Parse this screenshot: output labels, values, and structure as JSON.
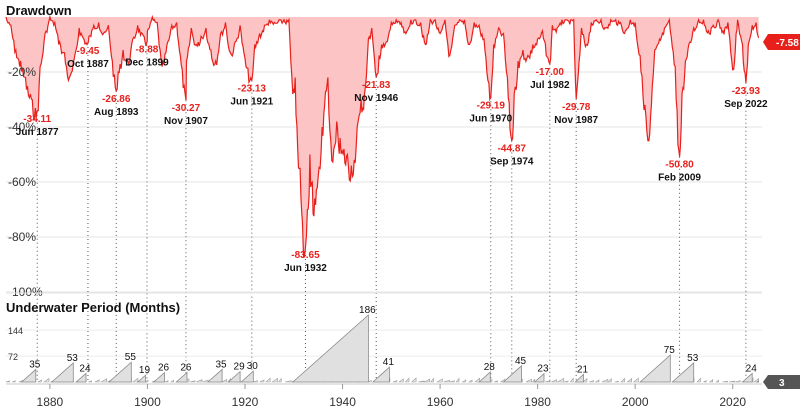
{
  "chart_data": [
    {
      "type": "area",
      "title": "Drawdown",
      "ylim": [
        -100,
        0
      ],
      "y_ticks": [
        "-20%",
        "-40%",
        "-60%",
        "-80%",
        "-100%"
      ],
      "x_ticks": [
        "1880",
        "1900",
        "1920",
        "1940",
        "1960",
        "1980",
        "2000",
        "2020"
      ],
      "xlim": [
        1871,
        2026
      ],
      "grid": true,
      "color": "#e8201c",
      "fill": "#fcc4c4",
      "current": {
        "label": "-7.58",
        "value": -7.58
      },
      "troughs": [
        {
          "date": "Jun 1877",
          "x": 1877.4,
          "value": -34.11,
          "label": "-34.11"
        },
        {
          "date": "Oct 1887",
          "x": 1887.8,
          "value": -9.45,
          "label": "-9.45"
        },
        {
          "date": "Aug 1893",
          "x": 1893.6,
          "value": -26.86,
          "label": "-26.86"
        },
        {
          "date": "Dec 1899",
          "x": 1899.9,
          "value": -8.88,
          "label": "-8.88"
        },
        {
          "date": "Nov 1907",
          "x": 1907.9,
          "value": -30.27,
          "label": "-30.27"
        },
        {
          "date": "Jun 1921",
          "x": 1921.4,
          "value": -23.13,
          "label": "-23.13"
        },
        {
          "date": "Jun 1932",
          "x": 1932.4,
          "value": -83.65,
          "label": "-83.65"
        },
        {
          "date": "Nov 1946",
          "x": 1946.9,
          "value": -21.83,
          "label": "-21.83"
        },
        {
          "date": "Jun 1970",
          "x": 1970.4,
          "value": -29.19,
          "label": "-29.19"
        },
        {
          "date": "Sep 1974",
          "x": 1974.7,
          "value": -44.87,
          "label": "-44.87"
        },
        {
          "date": "Jul 1982",
          "x": 1982.5,
          "value": -17.0,
          "label": "-17.00"
        },
        {
          "date": "Nov 1987",
          "x": 1987.9,
          "value": -29.78,
          "label": "-29.78"
        },
        {
          "date": "Feb 2009",
          "x": 2009.1,
          "value": -50.8,
          "label": "-50.80"
        },
        {
          "date": "Sep 2022",
          "x": 2022.7,
          "value": -23.93,
          "label": "-23.93"
        }
      ],
      "series": [
        {
          "values": [
            [
              1871,
              0
            ],
            [
              1872,
              -3
            ],
            [
              1873,
              -12
            ],
            [
              1874,
              -16
            ],
            [
              1875,
              -22
            ],
            [
              1876,
              -28
            ],
            [
              1877.4,
              -34.11
            ],
            [
              1878,
              -18
            ],
            [
              1879,
              -6
            ],
            [
              1880,
              0
            ],
            [
              1881,
              -2
            ],
            [
              1882,
              -9
            ],
            [
              1883,
              -13
            ],
            [
              1884,
              -22
            ],
            [
              1885,
              -15
            ],
            [
              1886,
              -4
            ],
            [
              1887.8,
              -9.45
            ],
            [
              1888,
              -7
            ],
            [
              1889,
              -3
            ],
            [
              1890,
              -2
            ],
            [
              1891,
              -6
            ],
            [
              1892,
              -3
            ],
            [
              1893.6,
              -26.86
            ],
            [
              1894,
              -20
            ],
            [
              1895,
              -12
            ],
            [
              1896,
              -16
            ],
            [
              1897,
              -8
            ],
            [
              1898,
              -3
            ],
            [
              1899.9,
              -8.88
            ],
            [
              1900,
              -5
            ],
            [
              1901,
              0
            ],
            [
              1902,
              -2
            ],
            [
              1903,
              -18
            ],
            [
              1904,
              -10
            ],
            [
              1905,
              -3
            ],
            [
              1906,
              -2
            ],
            [
              1907.9,
              -30.27
            ],
            [
              1908,
              -16
            ],
            [
              1909,
              -4
            ],
            [
              1910,
              -10
            ],
            [
              1911,
              -7
            ],
            [
              1912,
              -4
            ],
            [
              1913,
              -12
            ],
            [
              1914,
              -16
            ],
            [
              1915,
              -6
            ],
            [
              1916,
              -2
            ],
            [
              1917,
              -13
            ],
            [
              1918,
              -9
            ],
            [
              1919,
              -3
            ],
            [
              1920,
              -15
            ],
            [
              1921.4,
              -23.13
            ],
            [
              1922,
              -10
            ],
            [
              1923,
              -6
            ],
            [
              1924,
              -3
            ],
            [
              1925,
              -1
            ],
            [
              1926,
              -2
            ],
            [
              1927,
              -1
            ],
            [
              1928,
              -1
            ],
            [
              1929,
              -1
            ],
            [
              1929.8,
              -28
            ],
            [
              1930.3,
              -22
            ],
            [
              1930.8,
              -48
            ],
            [
              1931.3,
              -55
            ],
            [
              1931.8,
              -75
            ],
            [
              1932.4,
              -83.65
            ],
            [
              1932.8,
              -70
            ],
            [
              1933.3,
              -50
            ],
            [
              1933.8,
              -60
            ],
            [
              1934.3,
              -66
            ],
            [
              1935,
              -58
            ],
            [
              1935.8,
              -40
            ],
            [
              1936.5,
              -27
            ],
            [
              1937,
              -22
            ],
            [
              1937.6,
              -45
            ],
            [
              1938.2,
              -48
            ],
            [
              1938.8,
              -38
            ],
            [
              1939.5,
              -44
            ],
            [
              1940.3,
              -48
            ],
            [
              1941,
              -50
            ],
            [
              1941.8,
              -54
            ],
            [
              1942.4,
              -52
            ],
            [
              1943,
              -40
            ],
            [
              1943.8,
              -30
            ],
            [
              1944.5,
              -28
            ],
            [
              1945.3,
              -8
            ],
            [
              1946,
              -4
            ],
            [
              1946.9,
              -21.83
            ],
            [
              1947.5,
              -14
            ],
            [
              1948,
              -10
            ],
            [
              1949,
              -9
            ],
            [
              1950,
              -2
            ],
            [
              1951,
              -1
            ],
            [
              1952,
              -2
            ],
            [
              1953,
              -6
            ],
            [
              1954,
              -1
            ],
            [
              1955,
              -1
            ],
            [
              1956,
              -2
            ],
            [
              1957,
              -10
            ],
            [
              1958,
              -1
            ],
            [
              1959,
              -1
            ],
            [
              1960,
              -6
            ],
            [
              1961,
              -1
            ],
            [
              1962,
              -14
            ],
            [
              1963,
              -3
            ],
            [
              1964,
              -1
            ],
            [
              1965,
              -1
            ],
            [
              1966,
              -10
            ],
            [
              1967,
              -2
            ],
            [
              1968,
              -3
            ],
            [
              1969,
              -8
            ],
            [
              1970.4,
              -29.19
            ],
            [
              1971,
              -10
            ],
            [
              1972,
              -4
            ],
            [
              1973,
              -6
            ],
            [
              1973.8,
              -22
            ],
            [
              1974.7,
              -44.87
            ],
            [
              1975.2,
              -28
            ],
            [
              1976,
              -16
            ],
            [
              1977,
              -12
            ],
            [
              1978,
              -14
            ],
            [
              1979,
              -10
            ],
            [
              1980,
              -8
            ],
            [
              1981,
              -5
            ],
            [
              1982.5,
              -17
            ],
            [
              1983,
              -3
            ],
            [
              1984,
              -4
            ],
            [
              1985,
              -1
            ],
            [
              1986,
              -1
            ],
            [
              1987.4,
              -1
            ],
            [
              1987.9,
              -29.78
            ],
            [
              1988.5,
              -16
            ],
            [
              1989,
              -4
            ],
            [
              1990,
              -10
            ],
            [
              1991,
              -2
            ],
            [
              1992,
              -1
            ],
            [
              1993,
              -1
            ],
            [
              1994,
              -4
            ],
            [
              1995,
              -1
            ],
            [
              1996,
              -1
            ],
            [
              1997,
              -2
            ],
            [
              1998,
              -5
            ],
            [
              1999,
              -1
            ],
            [
              2000,
              -2
            ],
            [
              2001,
              -14
            ],
            [
              2002,
              -32
            ],
            [
              2002.8,
              -45
            ],
            [
              2003.5,
              -25
            ],
            [
              2004,
              -12
            ],
            [
              2005,
              -8
            ],
            [
              2006,
              -4
            ],
            [
              2007,
              -1
            ],
            [
              2008.2,
              -18
            ],
            [
              2008.6,
              -34
            ],
            [
              2009.1,
              -50.8
            ],
            [
              2009.6,
              -28
            ],
            [
              2010.3,
              -16
            ],
            [
              2011,
              -10
            ],
            [
              2012,
              -4
            ],
            [
              2013,
              -1
            ],
            [
              2014,
              -1
            ],
            [
              2015,
              -5
            ],
            [
              2016,
              -3
            ],
            [
              2017,
              -1
            ],
            [
              2018,
              -5
            ],
            [
              2019,
              -2
            ],
            [
              2020.2,
              -19
            ],
            [
              2020.7,
              -6
            ],
            [
              2021,
              -1
            ],
            [
              2022,
              -10
            ],
            [
              2022.7,
              -23.93
            ],
            [
              2023.2,
              -10
            ],
            [
              2024,
              -3
            ],
            [
              2024.8,
              -2
            ],
            [
              2025.3,
              -7.58
            ]
          ]
        }
      ]
    },
    {
      "type": "area",
      "title": "Underwater Period (Months)",
      "y_ticks": [
        "144",
        "72"
      ],
      "ylim": [
        0,
        190
      ],
      "current": {
        "label": "3",
        "value": 3
      },
      "periods": [
        {
          "start": 1874.2,
          "end": 1877.1,
          "months": 35,
          "label": "35"
        },
        {
          "start": 1880.4,
          "end": 1884.8,
          "months": 53,
          "label": "53"
        },
        {
          "start": 1885.4,
          "end": 1887.4,
          "months": 24,
          "label": "24"
        },
        {
          "start": 1892.1,
          "end": 1896.7,
          "months": 55,
          "label": "55"
        },
        {
          "start": 1898.0,
          "end": 1899.6,
          "months": 19,
          "label": "19"
        },
        {
          "start": 1901.3,
          "end": 1903.5,
          "months": 26,
          "label": "26"
        },
        {
          "start": 1905.9,
          "end": 1908.1,
          "months": 26,
          "label": "26"
        },
        {
          "start": 1912.4,
          "end": 1915.3,
          "months": 35,
          "label": "35"
        },
        {
          "start": 1916.6,
          "end": 1919.0,
          "months": 29,
          "label": "29"
        },
        {
          "start": 1919.2,
          "end": 1921.7,
          "months": 30,
          "label": "30"
        },
        {
          "start": 1929.8,
          "end": 1945.3,
          "months": 186,
          "label": "186"
        },
        {
          "start": 1946.2,
          "end": 1949.6,
          "months": 41,
          "label": "41"
        },
        {
          "start": 1968.0,
          "end": 1970.3,
          "months": 28,
          "label": "28"
        },
        {
          "start": 1973.0,
          "end": 1976.7,
          "months": 45,
          "label": "45"
        },
        {
          "start": 1979.4,
          "end": 1981.3,
          "months": 23,
          "label": "23"
        },
        {
          "start": 1987.7,
          "end": 1989.4,
          "months": 21,
          "label": "21"
        },
        {
          "start": 2001.0,
          "end": 2007.2,
          "months": 75,
          "label": "75"
        },
        {
          "start": 2007.6,
          "end": 2012.0,
          "months": 53,
          "label": "53"
        },
        {
          "start": 2022.0,
          "end": 2024.0,
          "months": 24,
          "label": "24"
        }
      ],
      "current_period": {
        "start": 2025.0,
        "end": 2025.3,
        "months": 3
      }
    }
  ]
}
